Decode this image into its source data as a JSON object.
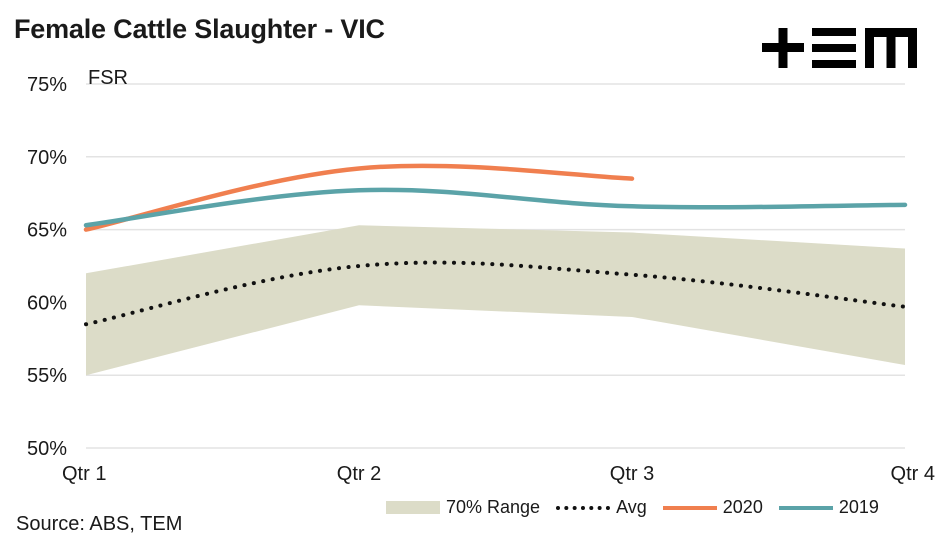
{
  "header": {
    "title": "Female Cattle Slaughter - VIC",
    "logo_text": "+EM"
  },
  "footer": {
    "source": "Source: ABS, TEM"
  },
  "colors": {
    "range": "#dcdcc8",
    "avg": "#111111",
    "series_2020": "#f07f4f",
    "series_2019": "#5ba3a8",
    "grid": "#e3e3e3",
    "logo": "#000000"
  },
  "legend": {
    "range_label": "70% Range",
    "avg_label": "Avg",
    "s2020_label": "2020",
    "s2019_label": "2019"
  },
  "chart_data": {
    "type": "line",
    "title": "Female Cattle Slaughter - VIC",
    "ylabel": "FSR",
    "xlabel": "",
    "categories": [
      "Qtr 1",
      "Qtr 2",
      "Qtr 3",
      "Qtr 4"
    ],
    "ylim": [
      50,
      75
    ],
    "yticks": [
      50,
      55,
      60,
      65,
      70,
      75
    ],
    "ytick_labels": [
      "50%",
      "55%",
      "60%",
      "65%",
      "70%",
      "75%"
    ],
    "grid": true,
    "legend_position": "bottom-right",
    "range": {
      "name": "70% Range",
      "lower": [
        55.0,
        59.8,
        59.0,
        55.7
      ],
      "upper": [
        62.0,
        65.3,
        64.8,
        63.7
      ]
    },
    "series": [
      {
        "name": "Avg",
        "values": [
          58.5,
          62.5,
          61.9,
          59.7
        ],
        "style": "dotted"
      },
      {
        "name": "2020",
        "values": [
          65.0,
          69.2,
          68.5,
          null
        ],
        "style": "solid"
      },
      {
        "name": "2019",
        "values": [
          65.3,
          67.7,
          66.6,
          66.7
        ],
        "style": "solid"
      }
    ]
  }
}
